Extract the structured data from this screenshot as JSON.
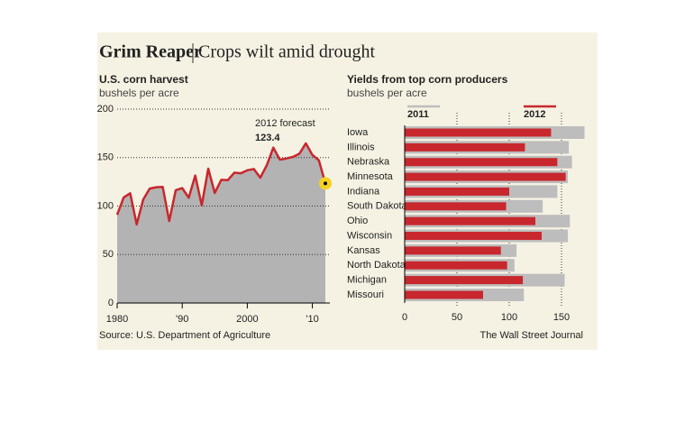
{
  "header": {
    "title": "Grim Reaper",
    "subtitle": "Crops wilt amid drought"
  },
  "chart_data": [
    {
      "type": "area",
      "title": "U.S. corn harvest",
      "subtitle": "bushels per acre",
      "x": [
        1980,
        1981,
        1982,
        1983,
        1984,
        1985,
        1986,
        1987,
        1988,
        1989,
        1990,
        1991,
        1992,
        1993,
        1994,
        1995,
        1996,
        1997,
        1998,
        1999,
        2000,
        2001,
        2002,
        2003,
        2004,
        2005,
        2006,
        2007,
        2008,
        2009,
        2010,
        2011,
        2012
      ],
      "values": [
        91.0,
        108.9,
        113.2,
        81.1,
        106.7,
        118.0,
        119.4,
        119.8,
        84.6,
        116.3,
        118.5,
        108.6,
        131.5,
        100.7,
        138.6,
        113.5,
        127.1,
        126.7,
        134.4,
        133.8,
        136.9,
        138.2,
        129.3,
        142.2,
        160.3,
        147.9,
        149.1,
        150.7,
        153.9,
        164.7,
        152.8,
        147.2,
        123.4
      ],
      "color": "#b3b3b3",
      "line_color": "#c8272d",
      "highlight_color": "#f5d21f",
      "annotation": "2012 forecast",
      "xlim": [
        1980,
        2012
      ],
      "xticks": [
        1980,
        {
          "value": 1990,
          "label": "'90"
        },
        2000,
        {
          "value": 2010,
          "label": "'10"
        }
      ],
      "ylim": [
        0,
        200
      ],
      "yticks": [
        0,
        50,
        100,
        150,
        200
      ],
      "grid": true
    },
    {
      "type": "hbar",
      "title": "Yields from top corn producers",
      "subtitle": "bushels per acre",
      "categories": [
        "Iowa",
        "Illinois",
        "Nebraska",
        "Minnesota",
        "Indiana",
        "South Dakota",
        "Ohio",
        "Wisconsin",
        "Kansas",
        "North Dakota",
        "Michigan",
        "Missouri"
      ],
      "series": [
        {
          "name": "2011",
          "color": "#bdbdbd",
          "values": [
            172,
            157,
            160,
            156,
            146,
            132,
            158,
            156,
            107,
            105,
            153,
            114
          ]
        },
        {
          "name": "2012",
          "color": "#c8272d",
          "values": [
            140,
            115,
            146,
            154,
            100,
            97,
            125,
            131,
            92,
            98,
            113,
            75
          ]
        }
      ],
      "xlim": [
        0,
        175
      ],
      "xticks": [
        0,
        50,
        100,
        150
      ],
      "grid": true
    }
  ],
  "footer": {
    "source": "Source: U.S. Department of Agriculture",
    "credit": "The Wall Street Journal"
  }
}
